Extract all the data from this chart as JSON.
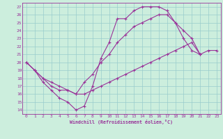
{
  "xlabel": "Windchill (Refroidissement éolien,°C)",
  "xlim": [
    -0.5,
    23.5
  ],
  "ylim": [
    13.5,
    27.5
  ],
  "xticks": [
    0,
    1,
    2,
    3,
    4,
    5,
    6,
    7,
    8,
    9,
    10,
    11,
    12,
    13,
    14,
    15,
    16,
    17,
    18,
    19,
    20,
    21,
    22,
    23
  ],
  "yticks": [
    14,
    15,
    16,
    17,
    18,
    19,
    20,
    21,
    22,
    23,
    24,
    25,
    26,
    27
  ],
  "line_color": "#993399",
  "bg_color": "#cceedd",
  "grid_color": "#99cccc",
  "line1_x": [
    0,
    1,
    2,
    3,
    4,
    5,
    6,
    7,
    8,
    9,
    10,
    11,
    12,
    13,
    14,
    15,
    16,
    17,
    18,
    19,
    20,
    21
  ],
  "line1_y": [
    20,
    19,
    17.5,
    16.5,
    15.5,
    15,
    14,
    14.5,
    17,
    20.5,
    22.5,
    25.5,
    25.5,
    26.5,
    27,
    27,
    27,
    26.5,
    25,
    23,
    21.5,
    21
  ],
  "line2_x": [
    0,
    1,
    2,
    3,
    4,
    5,
    6,
    7,
    8,
    9,
    10,
    11,
    12,
    13,
    14,
    15,
    16,
    17,
    18,
    19,
    20,
    21
  ],
  "line2_y": [
    20,
    19,
    18,
    17,
    16.5,
    16.5,
    16,
    17.5,
    18.5,
    20,
    21,
    22.5,
    23.5,
    24.5,
    25,
    25.5,
    26,
    26,
    25,
    24,
    23,
    21
  ],
  "line3_x": [
    0,
    1,
    2,
    3,
    4,
    5,
    6,
    7,
    8,
    9,
    10,
    11,
    12,
    13,
    14,
    15,
    16,
    17,
    18,
    19,
    20,
    21,
    22,
    23
  ],
  "line3_y": [
    20,
    19,
    18,
    17.5,
    17,
    16.5,
    16,
    16,
    16.5,
    17,
    17.5,
    18,
    18.5,
    19,
    19.5,
    20,
    20.5,
    21,
    21.5,
    22,
    22.5,
    21,
    21.5,
    21.5
  ]
}
